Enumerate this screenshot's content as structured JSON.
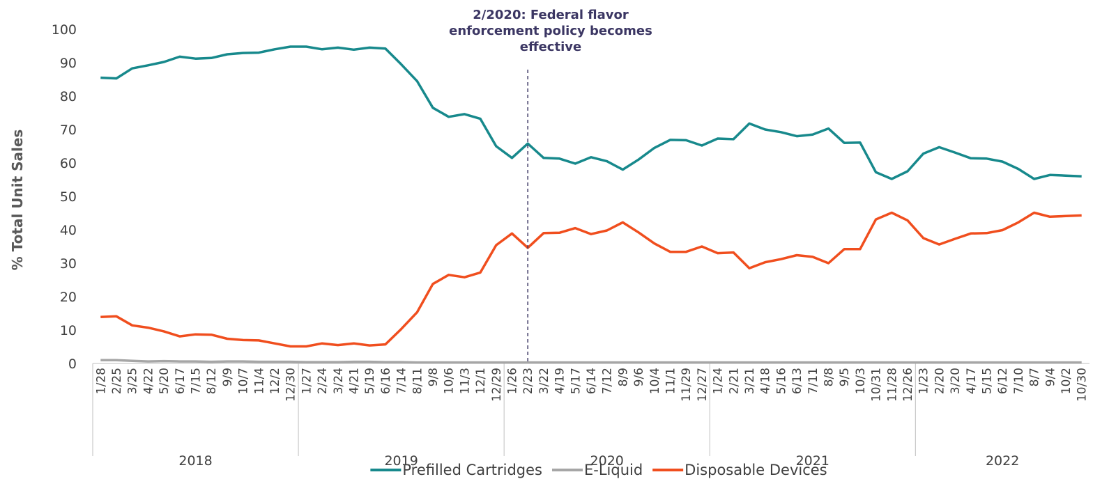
{
  "chart_data": {
    "type": "line",
    "y_label": "% Total Unit Sales",
    "ylim": [
      0,
      100
    ],
    "yticks": [
      0,
      10,
      20,
      30,
      40,
      50,
      60,
      70,
      80,
      90,
      100
    ],
    "grid": false,
    "legend": "bottom",
    "groups": [
      {
        "name": "2018",
        "categories": [
          "1/28",
          "2/25",
          "3/25",
          "4/22",
          "5/20",
          "6/17",
          "7/15",
          "8/12",
          "9/9",
          "10/7",
          "11/4",
          "12/2",
          "12/30"
        ]
      },
      {
        "name": "2019",
        "categories": [
          "1/27",
          "2/24",
          "3/24",
          "4/21",
          "5/19",
          "6/16",
          "7/14",
          "8/11",
          "9/8",
          "10/6",
          "11/3",
          "12/1",
          "12/29"
        ]
      },
      {
        "name": "2020",
        "categories": [
          "1/26",
          "2/23",
          "3/22",
          "4/19",
          "5/17",
          "6/14",
          "7/12",
          "8/9",
          "9/6",
          "10/4",
          "11/1",
          "11/29",
          "12/27"
        ]
      },
      {
        "name": "2021",
        "categories": [
          "1/24",
          "2/21",
          "3/21",
          "4/18",
          "5/16",
          "6/13",
          "7/11",
          "8/8",
          "9/5",
          "10/3",
          "10/31",
          "11/28",
          "12/26"
        ]
      },
      {
        "name": "2022",
        "categories": [
          "1/23",
          "2/20",
          "3/20",
          "4/17",
          "5/15",
          "6/12",
          "7/10",
          "8/7",
          "9/4",
          "10/2",
          "10/30"
        ]
      }
    ],
    "series": [
      {
        "name": "Prefilled Cartridges",
        "color": "#17898c",
        "values": [
          85.5,
          85.3,
          88.3,
          89.2,
          90.2,
          91.8,
          91.2,
          91.4,
          92.5,
          92.9,
          93.0,
          94.0,
          94.8,
          94.8,
          94.0,
          94.5,
          93.9,
          94.5,
          94.2,
          89.5,
          84.5,
          76.5,
          73.8,
          74.6,
          73.2,
          65.0,
          61.5,
          65.8,
          61.5,
          61.3,
          59.8,
          61.7,
          60.5,
          58.0,
          61.0,
          64.5,
          66.9,
          66.8,
          65.2,
          67.3,
          67.1,
          71.8,
          70.0,
          69.2,
          68.0,
          68.5,
          70.3,
          66.0,
          66.1,
          57.2,
          55.2,
          57.5,
          62.8,
          64.7,
          63.1,
          61.4,
          61.3,
          60.4,
          58.2,
          55.2,
          56.4,
          56.2,
          56.0
        ]
      },
      {
        "name": "E-Liquid",
        "color": "#a6a6a6",
        "values": [
          1.0,
          1.0,
          0.8,
          0.6,
          0.7,
          0.6,
          0.6,
          0.5,
          0.6,
          0.6,
          0.5,
          0.5,
          0.5,
          0.4,
          0.4,
          0.4,
          0.5,
          0.5,
          0.4,
          0.4,
          0.3,
          0.3,
          0.3,
          0.3,
          0.3,
          0.3,
          0.3,
          0.3,
          0.3,
          0.3,
          0.3,
          0.3,
          0.3,
          0.3,
          0.3,
          0.3,
          0.3,
          0.3,
          0.3,
          0.3,
          0.3,
          0.3,
          0.3,
          0.3,
          0.3,
          0.3,
          0.3,
          0.3,
          0.3,
          0.3,
          0.3,
          0.3,
          0.3,
          0.3,
          0.3,
          0.3,
          0.3,
          0.3,
          0.3,
          0.3,
          0.3,
          0.3,
          0.3
        ]
      },
      {
        "name": "Disposable Devices",
        "color": "#f04e1e",
        "values": [
          13.9,
          14.1,
          11.4,
          10.7,
          9.6,
          8.1,
          8.7,
          8.6,
          7.4,
          7.0,
          6.9,
          6.0,
          5.1,
          5.1,
          6.0,
          5.5,
          6.0,
          5.4,
          5.7,
          10.3,
          15.3,
          23.8,
          26.5,
          25.8,
          27.2,
          35.4,
          38.9,
          34.6,
          39.0,
          39.1,
          40.5,
          38.7,
          39.8,
          42.2,
          39.2,
          35.9,
          33.4,
          33.4,
          35.0,
          33.0,
          33.2,
          28.5,
          30.3,
          31.2,
          32.4,
          31.9,
          30.0,
          34.2,
          34.2,
          43.1,
          45.1,
          42.8,
          37.5,
          35.6,
          37.3,
          38.9,
          39.0,
          39.9,
          42.2,
          45.1,
          43.9,
          44.1,
          44.3
        ]
      }
    ],
    "annotation": {
      "group": "2020",
      "category": "2/23",
      "lines": [
        "2/2020: Federal flavor",
        "enforcement policy becomes",
        "effective"
      ],
      "color": "#3b3663"
    }
  }
}
